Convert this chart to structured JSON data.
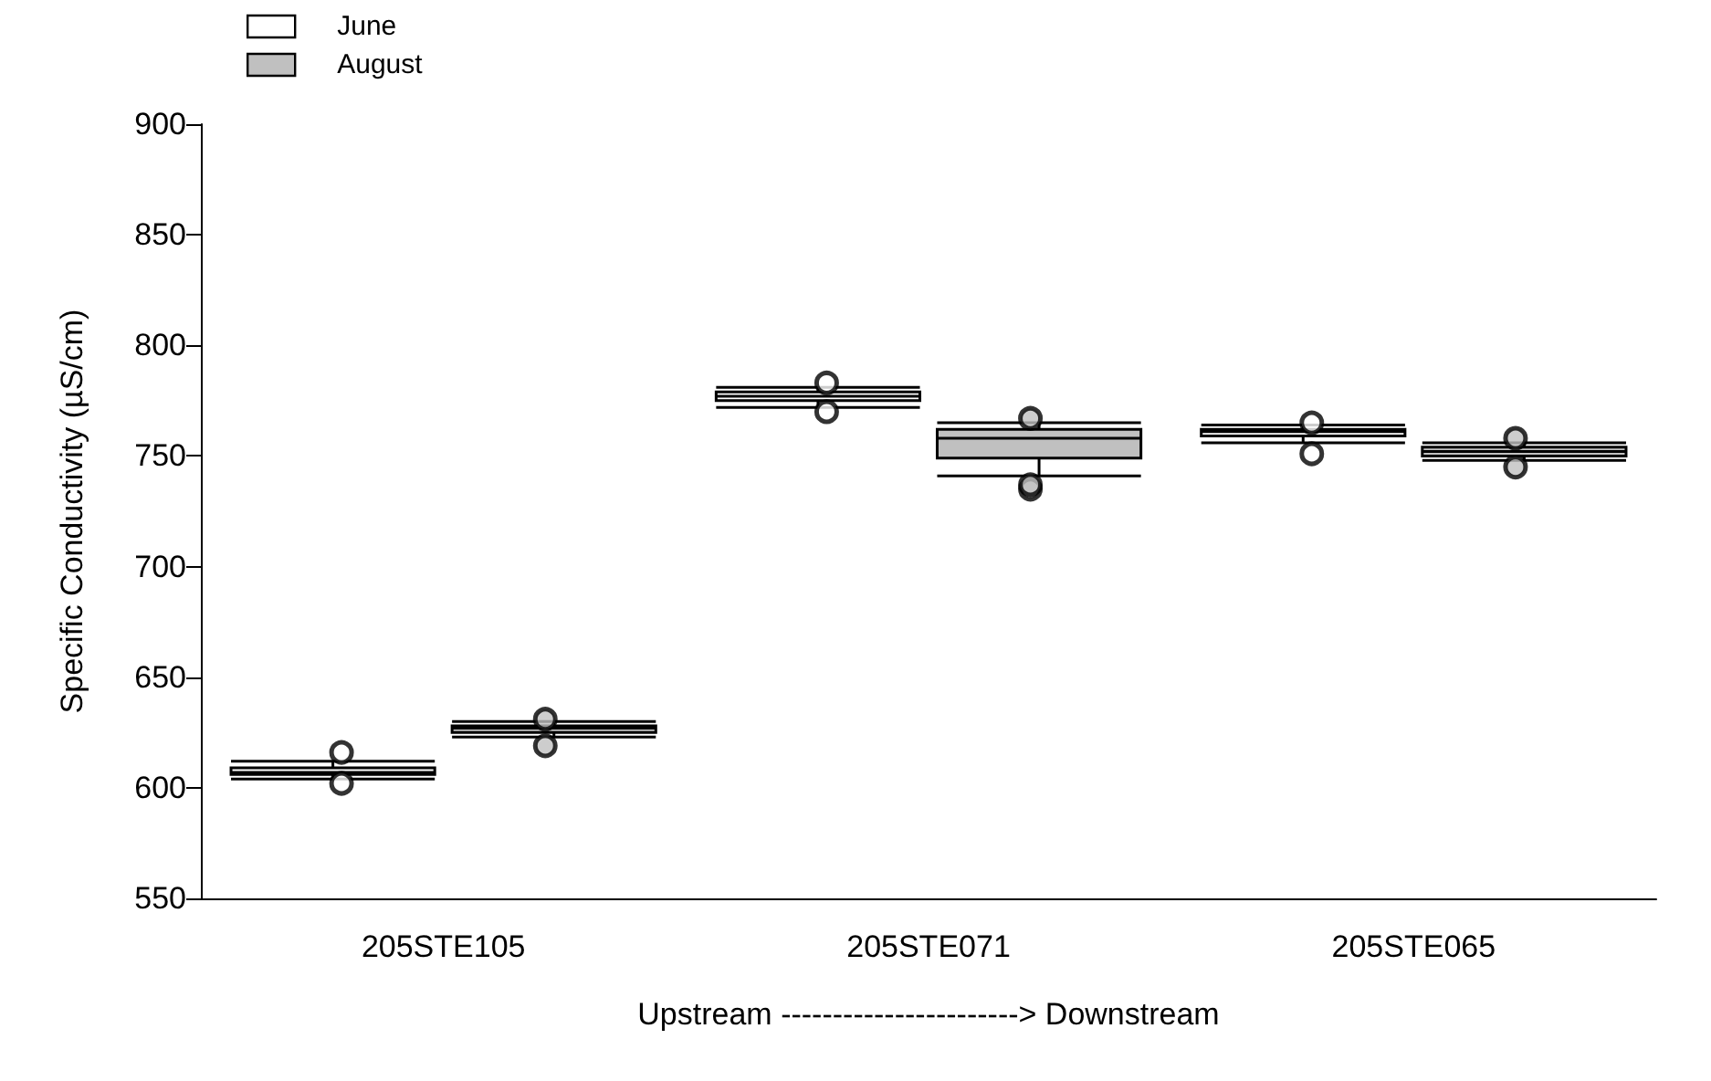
{
  "chart_data": {
    "type": "box",
    "ylabel": "Specific Conductivity (µS/cm)",
    "xlabel": "Upstream -----------------------> Downstream",
    "categories": [
      "205STE105",
      "205STE071",
      "205STE065"
    ],
    "ylim": [
      550,
      900
    ],
    "yticks": [
      550,
      600,
      650,
      700,
      750,
      800,
      850,
      900
    ],
    "legend": "top left",
    "grid": false,
    "series": [
      {
        "name": "June",
        "color": "#ffffff",
        "boxes": [
          {
            "low": 604,
            "q1": 606,
            "median": 607,
            "q3": 609,
            "high": 612,
            "outliers": [
              602,
              616
            ]
          },
          {
            "low": 772,
            "q1": 775,
            "median": 777,
            "q3": 779,
            "high": 781,
            "outliers": [
              770,
              783
            ]
          },
          {
            "low": 756,
            "q1": 759,
            "median": 761,
            "q3": 762,
            "high": 764,
            "outliers": [
              751,
              765
            ]
          }
        ]
      },
      {
        "name": "August",
        "color": "#c0c0c0",
        "boxes": [
          {
            "low": 623,
            "q1": 625,
            "median": 627,
            "q3": 628,
            "high": 630,
            "outliers": [
              619,
              631
            ]
          },
          {
            "low": 741,
            "q1": 749,
            "median": 758,
            "q3": 762,
            "high": 765,
            "outliers": [
              735,
              737,
              767
            ]
          },
          {
            "low": 748,
            "q1": 750,
            "median": 752,
            "q3": 754,
            "high": 756,
            "outliers": [
              745,
              758
            ]
          }
        ]
      }
    ]
  }
}
